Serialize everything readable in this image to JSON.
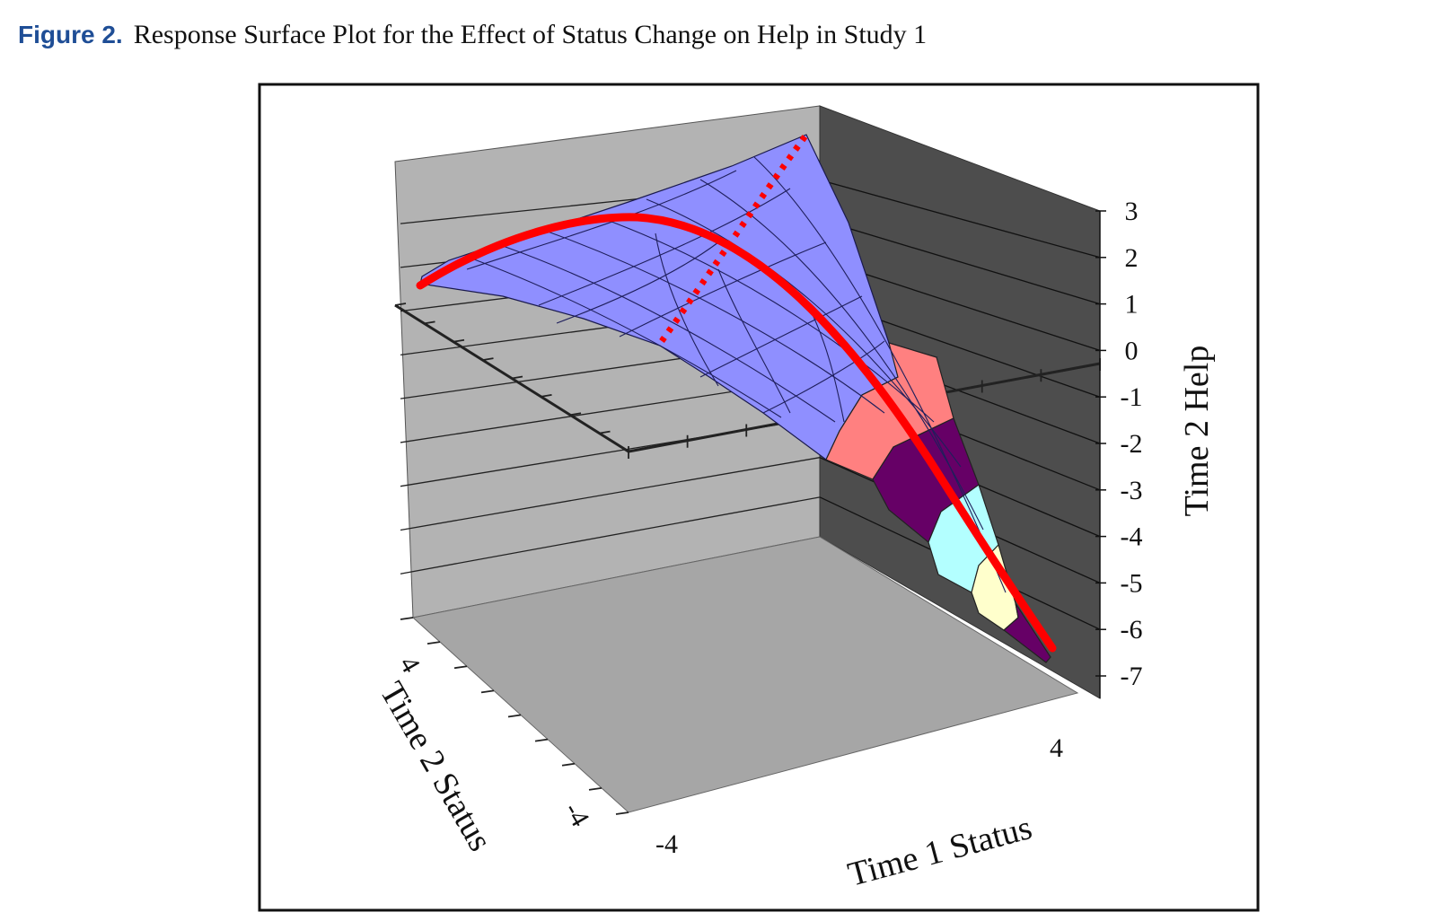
{
  "caption": {
    "label": "Figure 2.",
    "text": "Response Surface Plot for the Effect of Status Change on Help in Study 1"
  },
  "chart_data": {
    "type": "surface",
    "x_axis": {
      "title": "Time 1 Status",
      "range": [
        -4,
        4
      ],
      "tick_labels": [
        "-4",
        "4"
      ]
    },
    "y_axis": {
      "title": "Time 2 Status",
      "range": [
        -4,
        4
      ],
      "tick_labels": [
        "4",
        "-4"
      ]
    },
    "z_axis": {
      "title": "Time 2 Help",
      "range": [
        -7,
        3
      ],
      "tick_labels": [
        "3",
        "2",
        "1",
        "0",
        "-1",
        "-2",
        "-3",
        "-4",
        "-5",
        "-6",
        "-7"
      ]
    },
    "surface_peak_help": 2.8,
    "surface_min_help": -6.5,
    "band_colors": [
      "#8f8fff",
      "#ff8080",
      "#660066",
      "#b3ffff",
      "#ffffcc"
    ],
    "line_of_incongruence": {
      "style": "solid",
      "color": "#ff0000"
    },
    "line_of_congruence": {
      "style": "dotted",
      "color": "#ff0000"
    },
    "wall_color": "#b3b3b3",
    "right_wall_color": "#4d4d4d",
    "floor_color": "#a6a6a6",
    "grid": true
  }
}
